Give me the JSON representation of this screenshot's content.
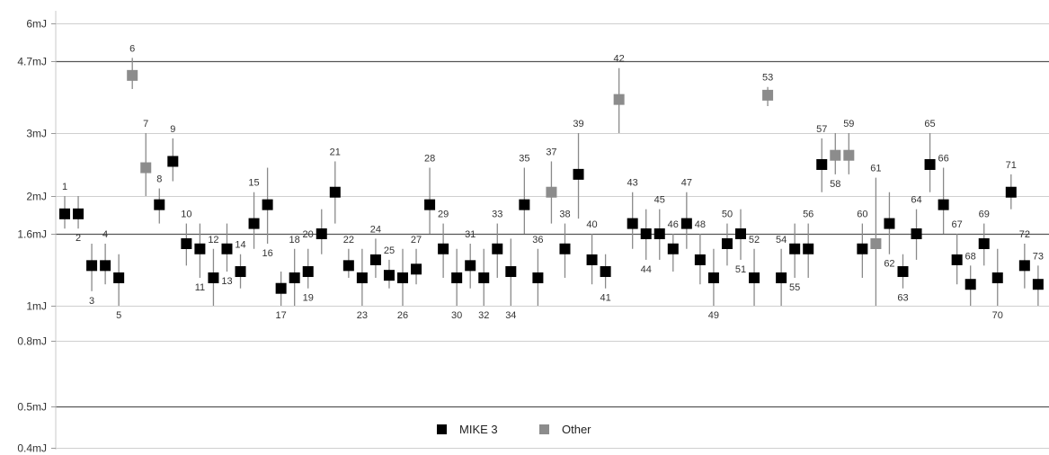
{
  "chart_data": {
    "type": "scatter",
    "title": "",
    "xlabel": "",
    "ylabel": "",
    "y_scale": "log",
    "ylim": [
      0.4,
      6
    ],
    "y_ticks": [
      {
        "value": 6,
        "label": "6mJ"
      },
      {
        "value": 4.7,
        "label": "4.7mJ"
      },
      {
        "value": 3,
        "label": "3mJ"
      },
      {
        "value": 2,
        "label": "2mJ"
      },
      {
        "value": 1.6,
        "label": "1.6mJ"
      },
      {
        "value": 1,
        "label": "1mJ"
      },
      {
        "value": 0.8,
        "label": "0.8mJ"
      },
      {
        "value": 0.5,
        "label": "0.5mJ"
      },
      {
        "value": 0.4,
        "label": "0.4mJ"
      }
    ],
    "reference_lines": [
      4.7,
      1.6,
      0.5
    ],
    "legend_position": "bottom",
    "series": [
      {
        "name": "MIKE 3",
        "color": "#000000"
      },
      {
        "name": "Other",
        "color": "#8c8c8c"
      }
    ],
    "points": [
      {
        "id": 1,
        "label": "1",
        "series": 0,
        "value": 1.8,
        "low": 1.65,
        "high": 2.0,
        "label_pos": "above"
      },
      {
        "id": 2,
        "label": "2",
        "series": 0,
        "value": 1.8,
        "low": 1.65,
        "high": 2.0,
        "label_pos": "below"
      },
      {
        "id": 3,
        "label": "3",
        "series": 0,
        "value": 1.3,
        "low": 1.1,
        "high": 1.5,
        "label_pos": "below"
      },
      {
        "id": 4,
        "label": "4",
        "series": 0,
        "value": 1.3,
        "low": 1.15,
        "high": 1.5,
        "label_pos": "above"
      },
      {
        "id": 5,
        "label": "5",
        "series": 0,
        "value": 1.2,
        "low": 1.0,
        "high": 1.4,
        "label_pos": "below"
      },
      {
        "id": 6,
        "label": "6",
        "series": 1,
        "value": 4.3,
        "low": 3.95,
        "high": 4.8,
        "label_pos": "above"
      },
      {
        "id": 7,
        "label": "7",
        "series": 1,
        "value": 2.4,
        "low": 2.0,
        "high": 3.0,
        "label_pos": "above"
      },
      {
        "id": 8,
        "label": "8",
        "series": 0,
        "value": 1.9,
        "low": 1.7,
        "high": 2.1,
        "label_pos": "above"
      },
      {
        "id": 9,
        "label": "9",
        "series": 0,
        "value": 2.5,
        "low": 2.2,
        "high": 2.9,
        "label_pos": "above"
      },
      {
        "id": 10,
        "label": "10",
        "series": 0,
        "value": 1.5,
        "low": 1.3,
        "high": 1.7,
        "label_pos": "above"
      },
      {
        "id": 11,
        "label": "11",
        "series": 0,
        "value": 1.45,
        "low": 1.2,
        "high": 1.7,
        "label_pos": "below"
      },
      {
        "id": 12,
        "label": "12",
        "series": 0,
        "value": 1.2,
        "low": 1.0,
        "high": 1.45,
        "label_pos": "above"
      },
      {
        "id": 13,
        "label": "13",
        "series": 0,
        "value": 1.45,
        "low": 1.25,
        "high": 1.7,
        "label_pos": "below"
      },
      {
        "id": 14,
        "label": "14",
        "series": 0,
        "value": 1.25,
        "low": 1.12,
        "high": 1.4,
        "label_pos": "above"
      },
      {
        "id": 15,
        "label": "15",
        "series": 0,
        "value": 1.7,
        "low": 1.45,
        "high": 2.05,
        "label_pos": "above"
      },
      {
        "id": 16,
        "label": "16",
        "series": 0,
        "value": 1.9,
        "low": 1.5,
        "high": 2.4,
        "label_pos": "below"
      },
      {
        "id": 17,
        "label": "17",
        "series": 0,
        "value": 1.12,
        "low": 1.0,
        "high": 1.25,
        "label_pos": "below"
      },
      {
        "id": 18,
        "label": "18",
        "series": 0,
        "value": 1.2,
        "low": 1.0,
        "high": 1.45,
        "label_pos": "above"
      },
      {
        "id": 19,
        "label": "19",
        "series": 0,
        "value": 1.25,
        "low": 1.12,
        "high": 1.45,
        "label_pos": "below"
      },
      {
        "id": 20,
        "label": "20",
        "series": 0,
        "value": 1.6,
        "low": 1.4,
        "high": 1.85,
        "label_pos": "left"
      },
      {
        "id": 21,
        "label": "21",
        "series": 0,
        "value": 2.05,
        "low": 1.7,
        "high": 2.5,
        "label_pos": "above"
      },
      {
        "id": 22,
        "label": "22",
        "series": 0,
        "value": 1.3,
        "low": 1.2,
        "high": 1.45,
        "label_pos": "above"
      },
      {
        "id": 23,
        "label": "23",
        "series": 0,
        "value": 1.2,
        "low": 1.0,
        "high": 1.45,
        "label_pos": "below"
      },
      {
        "id": 24,
        "label": "24",
        "series": 0,
        "value": 1.35,
        "low": 1.2,
        "high": 1.55,
        "label_pos": "above"
      },
      {
        "id": 25,
        "label": "25",
        "series": 0,
        "value": 1.22,
        "low": 1.12,
        "high": 1.35,
        "label_pos": "above"
      },
      {
        "id": 26,
        "label": "26",
        "series": 0,
        "value": 1.2,
        "low": 1.0,
        "high": 1.45,
        "label_pos": "below"
      },
      {
        "id": 27,
        "label": "27",
        "series": 0,
        "value": 1.27,
        "low": 1.15,
        "high": 1.45,
        "label_pos": "above"
      },
      {
        "id": 28,
        "label": "28",
        "series": 0,
        "value": 1.9,
        "low": 1.6,
        "high": 2.4,
        "label_pos": "above"
      },
      {
        "id": 29,
        "label": "29",
        "series": 0,
        "value": 1.45,
        "low": 1.2,
        "high": 1.7,
        "label_pos": "above"
      },
      {
        "id": 30,
        "label": "30",
        "series": 0,
        "value": 1.2,
        "low": 1.0,
        "high": 1.45,
        "label_pos": "below"
      },
      {
        "id": 31,
        "label": "31",
        "series": 0,
        "value": 1.3,
        "low": 1.12,
        "high": 1.5,
        "label_pos": "above"
      },
      {
        "id": 32,
        "label": "32",
        "series": 0,
        "value": 1.2,
        "low": 1.0,
        "high": 1.45,
        "label_pos": "below"
      },
      {
        "id": 33,
        "label": "33",
        "series": 0,
        "value": 1.45,
        "low": 1.2,
        "high": 1.7,
        "label_pos": "above"
      },
      {
        "id": 34,
        "label": "34",
        "series": 0,
        "value": 1.25,
        "low": 1.0,
        "high": 1.55,
        "label_pos": "below"
      },
      {
        "id": 35,
        "label": "35",
        "series": 0,
        "value": 1.9,
        "low": 1.6,
        "high": 2.4,
        "label_pos": "above"
      },
      {
        "id": 36,
        "label": "36",
        "series": 0,
        "value": 1.2,
        "low": 1.0,
        "high": 1.45,
        "label_pos": "above"
      },
      {
        "id": 37,
        "label": "37",
        "series": 1,
        "value": 2.05,
        "low": 1.7,
        "high": 2.5,
        "label_pos": "above"
      },
      {
        "id": 38,
        "label": "38",
        "series": 0,
        "value": 1.45,
        "low": 1.2,
        "high": 1.7,
        "label_pos": "above"
      },
      {
        "id": 39,
        "label": "39",
        "series": 0,
        "value": 2.3,
        "low": 1.75,
        "high": 3.0,
        "label_pos": "above"
      },
      {
        "id": 40,
        "label": "40",
        "series": 0,
        "value": 1.35,
        "low": 1.15,
        "high": 1.6,
        "label_pos": "above"
      },
      {
        "id": 41,
        "label": "41",
        "series": 0,
        "value": 1.25,
        "low": 1.12,
        "high": 1.4,
        "label_pos": "below"
      },
      {
        "id": 42,
        "label": "42",
        "series": 1,
        "value": 3.7,
        "low": 3.0,
        "high": 4.5,
        "label_pos": "above"
      },
      {
        "id": 43,
        "label": "43",
        "series": 0,
        "value": 1.7,
        "low": 1.45,
        "high": 2.05,
        "label_pos": "above"
      },
      {
        "id": 44,
        "label": "44",
        "series": 0,
        "value": 1.6,
        "low": 1.35,
        "high": 1.85,
        "label_pos": "below"
      },
      {
        "id": 45,
        "label": "45",
        "series": 0,
        "value": 1.6,
        "low": 1.35,
        "high": 1.85,
        "label_pos": "above"
      },
      {
        "id": 46,
        "label": "46",
        "series": 0,
        "value": 1.45,
        "low": 1.25,
        "high": 1.6,
        "label_pos": "above"
      },
      {
        "id": 47,
        "label": "47",
        "series": 0,
        "value": 1.7,
        "low": 1.45,
        "high": 2.05,
        "label_pos": "above"
      },
      {
        "id": 48,
        "label": "48",
        "series": 0,
        "value": 1.35,
        "low": 1.15,
        "high": 1.6,
        "label_pos": "above"
      },
      {
        "id": 49,
        "label": "49",
        "series": 0,
        "value": 1.2,
        "low": 1.0,
        "high": 1.45,
        "label_pos": "below"
      },
      {
        "id": 50,
        "label": "50",
        "series": 0,
        "value": 1.5,
        "low": 1.3,
        "high": 1.7,
        "label_pos": "above"
      },
      {
        "id": 51,
        "label": "51",
        "series": 0,
        "value": 1.6,
        "low": 1.35,
        "high": 1.85,
        "label_pos": "below"
      },
      {
        "id": 52,
        "label": "52",
        "series": 0,
        "value": 1.2,
        "low": 1.0,
        "high": 1.45,
        "label_pos": "above"
      },
      {
        "id": 53,
        "label": "53",
        "series": 1,
        "value": 3.8,
        "low": 3.55,
        "high": 4.0,
        "label_pos": "above"
      },
      {
        "id": 54,
        "label": "54",
        "series": 0,
        "value": 1.2,
        "low": 1.0,
        "high": 1.45,
        "label_pos": "above"
      },
      {
        "id": 55,
        "label": "55",
        "series": 0,
        "value": 1.45,
        "low": 1.2,
        "high": 1.7,
        "label_pos": "below"
      },
      {
        "id": 56,
        "label": "56",
        "series": 0,
        "value": 1.45,
        "low": 1.2,
        "high": 1.7,
        "label_pos": "above"
      },
      {
        "id": 57,
        "label": "57",
        "series": 0,
        "value": 2.45,
        "low": 2.05,
        "high": 2.9,
        "label_pos": "above"
      },
      {
        "id": 58,
        "label": "58",
        "series": 1,
        "value": 2.6,
        "low": 2.3,
        "high": 3.0,
        "label_pos": "below"
      },
      {
        "id": 59,
        "label": "59",
        "series": 1,
        "value": 2.6,
        "low": 2.3,
        "high": 3.0,
        "label_pos": "above"
      },
      {
        "id": 60,
        "label": "60",
        "series": 0,
        "value": 1.45,
        "low": 1.2,
        "high": 1.7,
        "label_pos": "above"
      },
      {
        "id": 61,
        "label": "61",
        "series": 1,
        "value": 1.5,
        "low": 1.0,
        "high": 2.25,
        "label_pos": "above"
      },
      {
        "id": 62,
        "label": "62",
        "series": 0,
        "value": 1.7,
        "low": 1.4,
        "high": 2.05,
        "label_pos": "below"
      },
      {
        "id": 63,
        "label": "63",
        "series": 0,
        "value": 1.25,
        "low": 1.12,
        "high": 1.4,
        "label_pos": "below"
      },
      {
        "id": 64,
        "label": "64",
        "series": 0,
        "value": 1.6,
        "low": 1.35,
        "high": 1.85,
        "label_pos": "above"
      },
      {
        "id": 65,
        "label": "65",
        "series": 0,
        "value": 2.45,
        "low": 2.05,
        "high": 3.0,
        "label_pos": "above"
      },
      {
        "id": 66,
        "label": "66",
        "series": 0,
        "value": 1.9,
        "low": 1.6,
        "high": 2.4,
        "label_pos": "above"
      },
      {
        "id": 67,
        "label": "67",
        "series": 0,
        "value": 1.35,
        "low": 1.15,
        "high": 1.6,
        "label_pos": "above"
      },
      {
        "id": 68,
        "label": "68",
        "series": 0,
        "value": 1.15,
        "low": 1.0,
        "high": 1.3,
        "label_pos": "above"
      },
      {
        "id": 69,
        "label": "69",
        "series": 0,
        "value": 1.5,
        "low": 1.3,
        "high": 1.7,
        "label_pos": "above"
      },
      {
        "id": 70,
        "label": "70",
        "series": 0,
        "value": 1.2,
        "low": 1.0,
        "high": 1.45,
        "label_pos": "below"
      },
      {
        "id": 71,
        "label": "71",
        "series": 0,
        "value": 2.05,
        "low": 1.85,
        "high": 2.3,
        "label_pos": "above"
      },
      {
        "id": 72,
        "label": "72",
        "series": 0,
        "value": 1.3,
        "low": 1.12,
        "high": 1.5,
        "label_pos": "above"
      },
      {
        "id": 73,
        "label": "73",
        "series": 0,
        "value": 1.15,
        "low": 1.0,
        "high": 1.3,
        "label_pos": "above"
      }
    ]
  }
}
